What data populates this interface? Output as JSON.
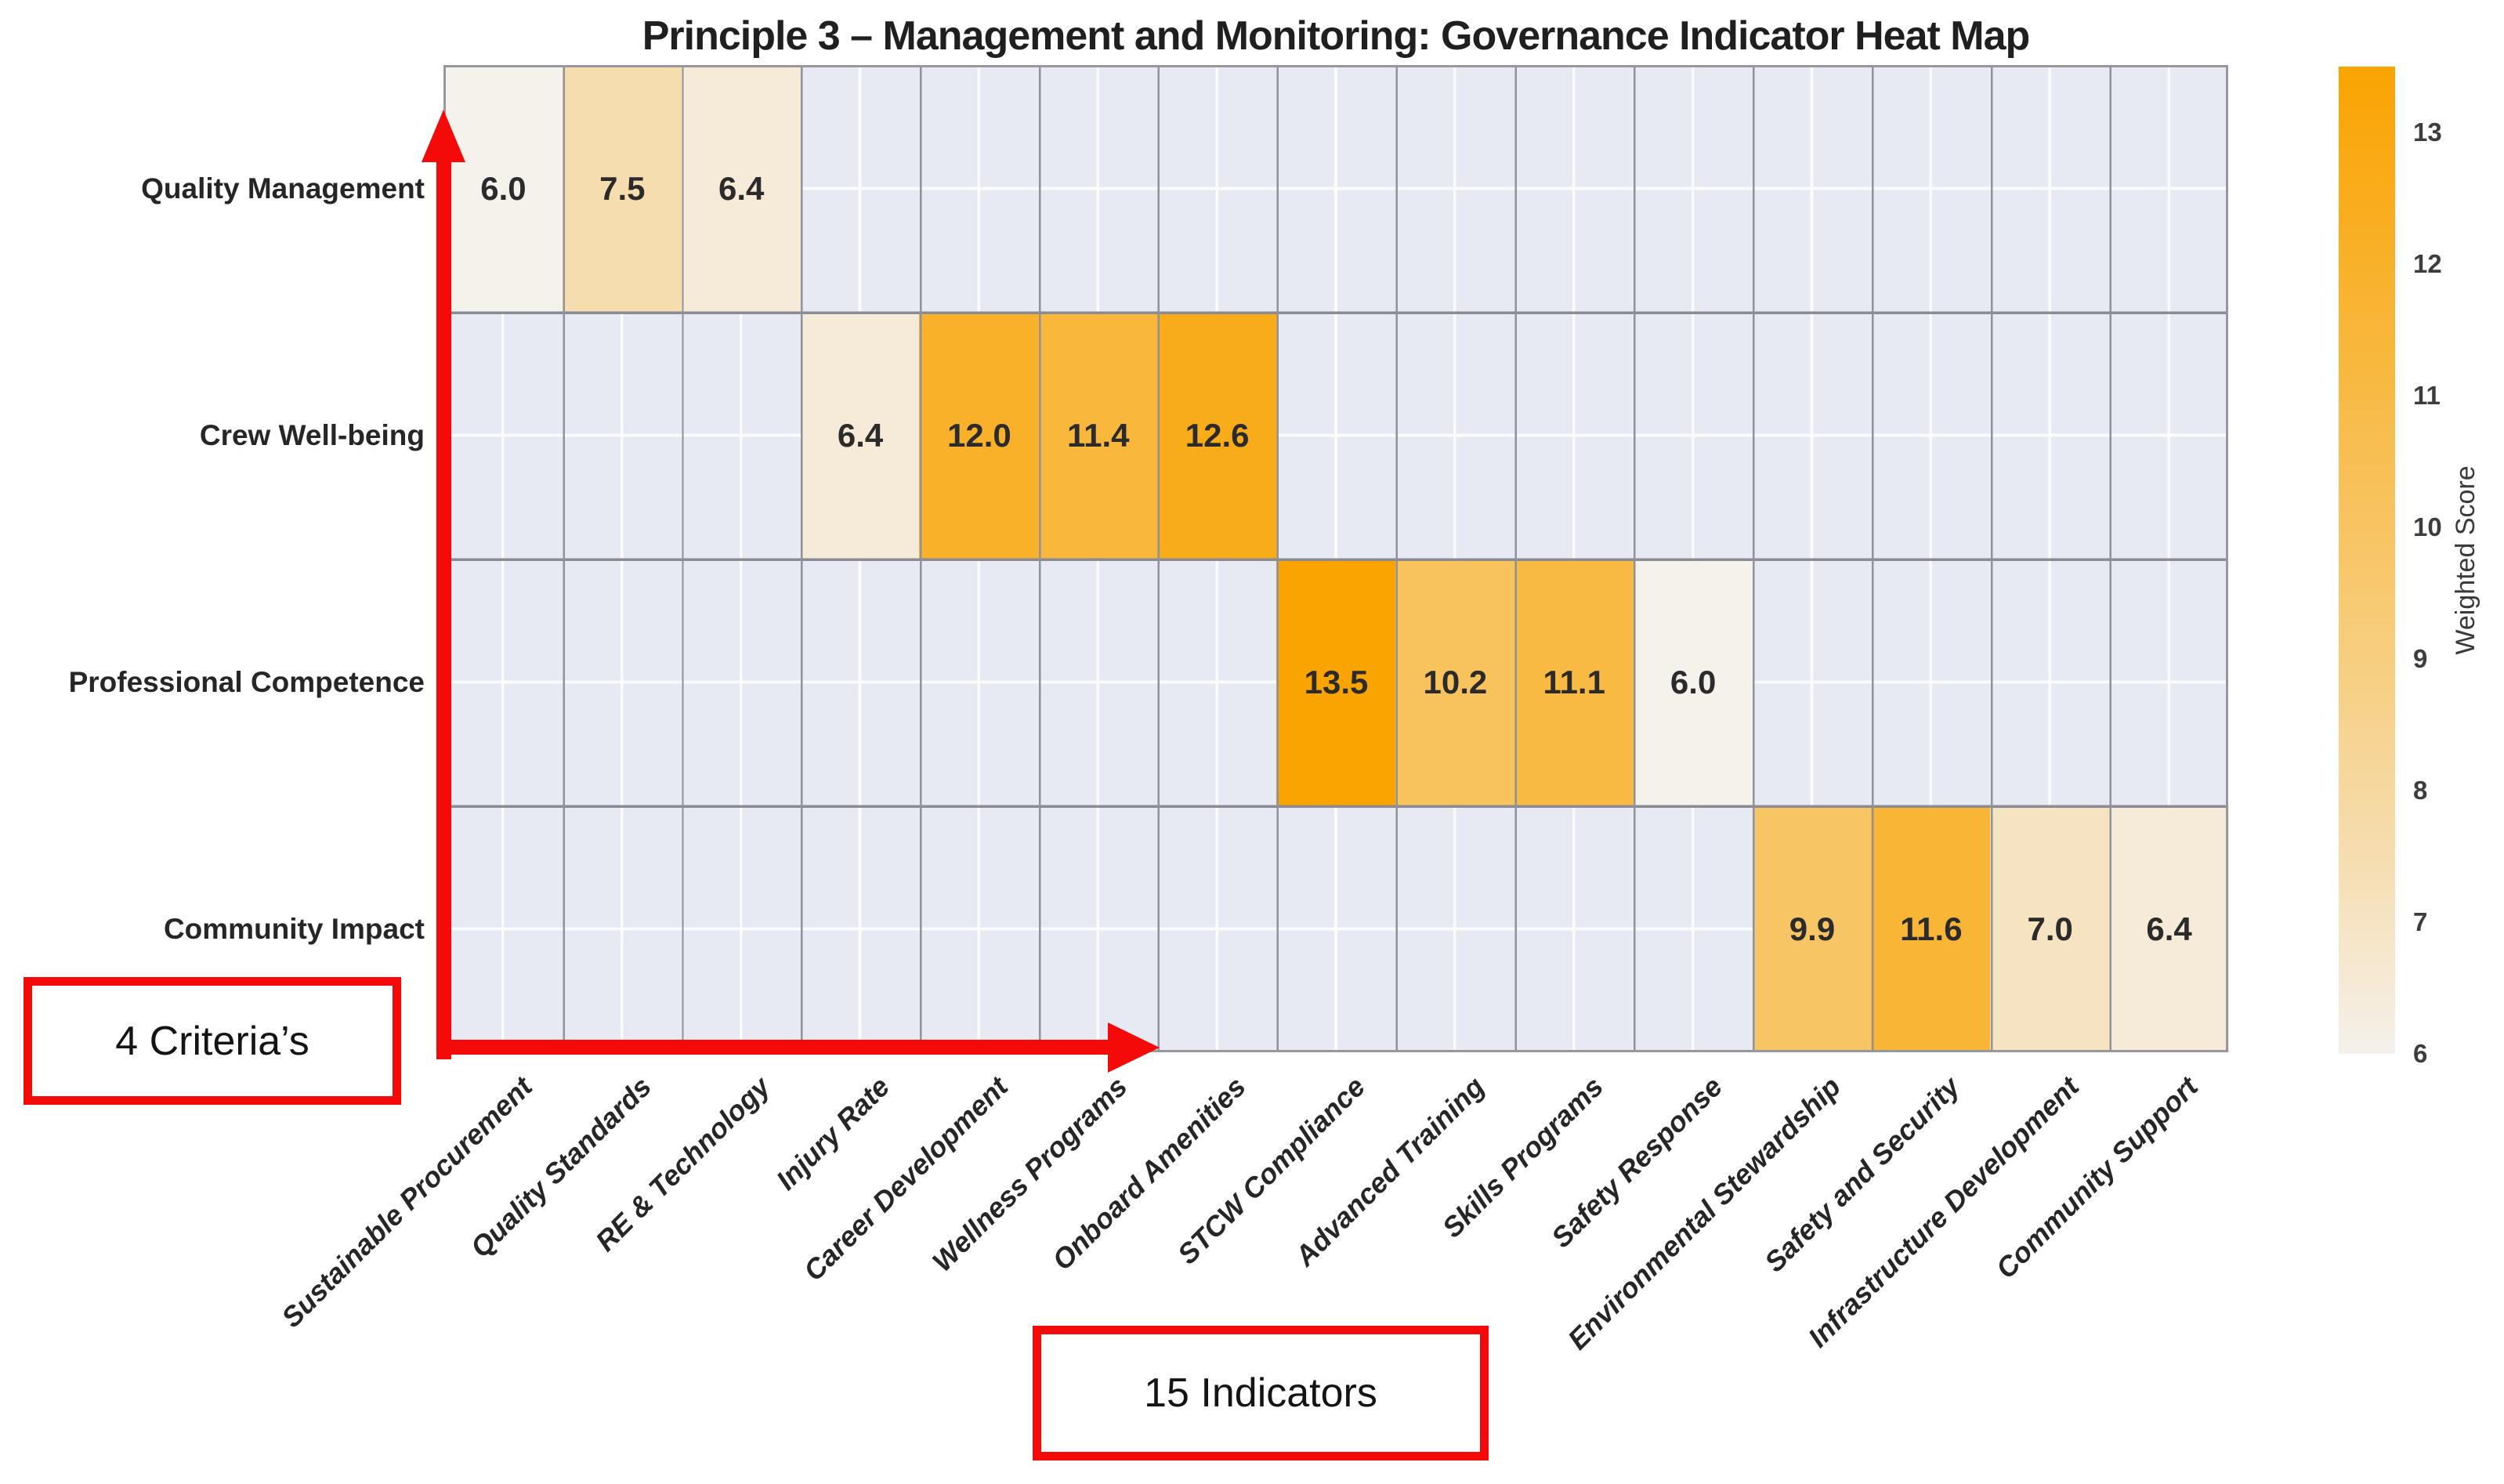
{
  "title": "Principle 3 – Management and Monitoring: Governance Indicator Heat Map",
  "chart_data": {
    "type": "heatmap",
    "title": "Principle 3 – Management and Monitoring: Governance Indicator Heat Map",
    "xlabel": "",
    "ylabel": "",
    "grid": true,
    "rows": [
      "Quality Management",
      "Crew Well-being",
      "Professional Competence",
      "Community Impact"
    ],
    "columns": [
      "Sustainable Procurement",
      "Quality Standards",
      "RE & Technology",
      "Injury Rate",
      "Career Development",
      "Wellness Programs",
      "Onboard Amenities",
      "STCW Compliance",
      "Advanced Training",
      "Skills Programs",
      "Safety Response",
      "Environmental Stewardship",
      "Safety and Security",
      "Infrastructure Development",
      "Community Support"
    ],
    "cells": [
      {
        "r": 0,
        "c": 0,
        "v": 6.0
      },
      {
        "r": 0,
        "c": 1,
        "v": 7.5
      },
      {
        "r": 0,
        "c": 2,
        "v": 6.4
      },
      {
        "r": 1,
        "c": 3,
        "v": 6.4
      },
      {
        "r": 1,
        "c": 4,
        "v": 12.0
      },
      {
        "r": 1,
        "c": 5,
        "v": 11.4
      },
      {
        "r": 1,
        "c": 6,
        "v": 12.6
      },
      {
        "r": 2,
        "c": 7,
        "v": 13.5
      },
      {
        "r": 2,
        "c": 8,
        "v": 10.2
      },
      {
        "r": 2,
        "c": 9,
        "v": 11.1
      },
      {
        "r": 2,
        "c": 10,
        "v": 6.0
      },
      {
        "r": 3,
        "c": 11,
        "v": 9.9
      },
      {
        "r": 3,
        "c": 12,
        "v": 11.6
      },
      {
        "r": 3,
        "c": 13,
        "v": 7.0
      },
      {
        "r": 3,
        "c": 14,
        "v": 6.4
      }
    ],
    "colorbar": {
      "label": "Weighted Score",
      "ticks": [
        13,
        12,
        11,
        10,
        9,
        8,
        7,
        6
      ],
      "vmin": 6,
      "vmax": 13.5,
      "color_low": "#f5f1eb",
      "color_high": "#faa402"
    },
    "colors": {
      "plot_background": "#e8eaf3",
      "minor_grid": "#fafbfd",
      "major_grid": "#8f929b"
    }
  },
  "annotations": {
    "criteria_box": "4 Criteria’s",
    "indicators_box": "15 Indicators",
    "arrow_color": "#f50a0a",
    "box_border_color": "#f50a0a"
  }
}
